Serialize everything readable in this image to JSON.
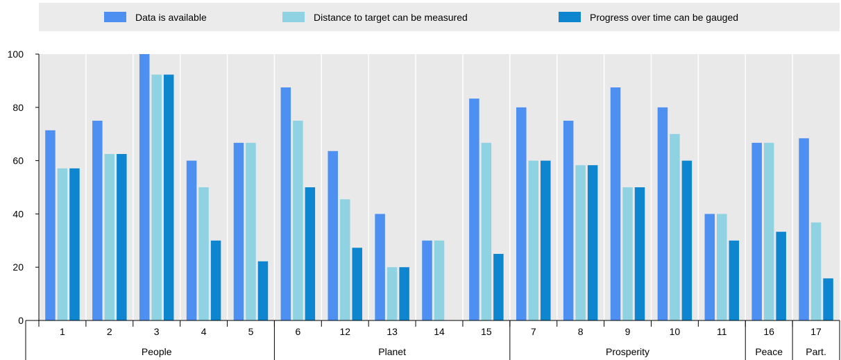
{
  "colors": {
    "data_available": "#4e8ff2",
    "distance_measured": "#8fd3e2",
    "progress_gauged": "#0d86cf",
    "plot_background": "#e9e9e9",
    "legend_background": "#ebebeb",
    "gridline": "#ffffff",
    "axis": "#000000"
  },
  "chart_data": {
    "type": "bar",
    "title": "",
    "xlabel": "",
    "ylabel": "",
    "ylim": [
      0,
      100
    ],
    "yticks": [
      0,
      20,
      40,
      60,
      80,
      100
    ],
    "grid": "vertical separators between goals",
    "legend_position": "top",
    "categories": [
      "1",
      "2",
      "3",
      "4",
      "5",
      "6",
      "12",
      "13",
      "14",
      "15",
      "7",
      "8",
      "9",
      "10",
      "11",
      "16",
      "17"
    ],
    "groups": [
      {
        "label": "People",
        "count": 5
      },
      {
        "label": "Planet",
        "count": 5
      },
      {
        "label": "Prosperity",
        "count": 5
      },
      {
        "label": "Peace",
        "count": 1
      },
      {
        "label": "Part.",
        "count": 1
      }
    ],
    "series": [
      {
        "name": "Data is available",
        "color_key": "data_available",
        "values": [
          71.4,
          75,
          100,
          60,
          66.7,
          87.5,
          63.6,
          40,
          30,
          83.3,
          80,
          75,
          87.5,
          80,
          40,
          66.7,
          68.4
        ]
      },
      {
        "name": "Distance to target can be measured",
        "color_key": "distance_measured",
        "values": [
          57.1,
          62.5,
          92.3,
          50,
          66.7,
          75,
          45.5,
          20,
          30,
          66.7,
          60,
          58.3,
          50,
          70,
          40,
          66.7,
          36.8
        ]
      },
      {
        "name": "Progress over time can be gauged",
        "color_key": "progress_gauged",
        "values": [
          57.1,
          62.5,
          92.3,
          30,
          22.2,
          50,
          27.3,
          20,
          0,
          25,
          60,
          58.3,
          50,
          60,
          30,
          33.3,
          15.8
        ]
      }
    ]
  }
}
